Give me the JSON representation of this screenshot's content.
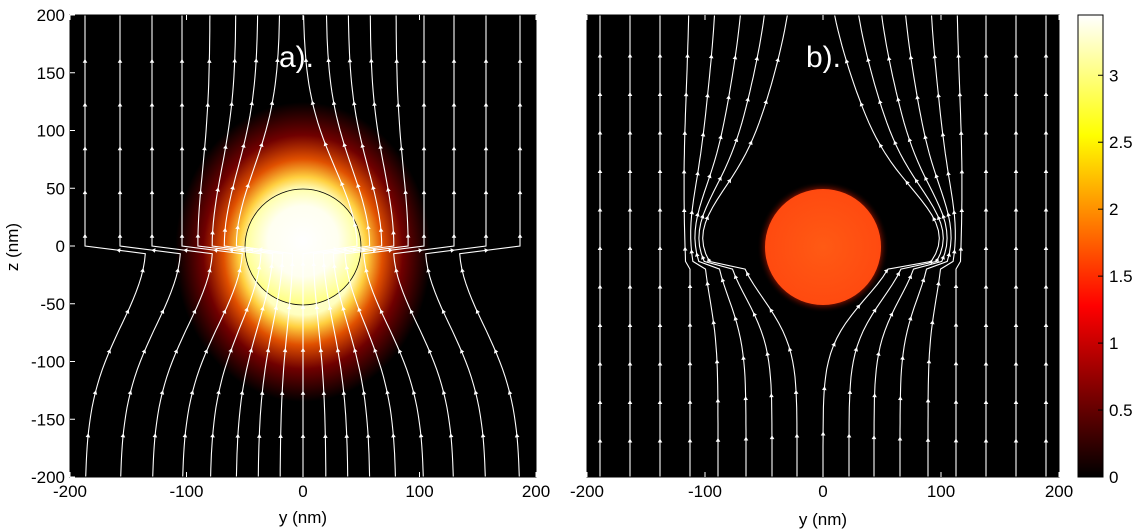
{
  "chart_data": [
    {
      "type": "heatmap",
      "panel_label": "a).",
      "xlabel": "y (nm)",
      "ylabel": "z (nm)",
      "xlim": [
        -200,
        200
      ],
      "ylim": [
        -200,
        200
      ],
      "x_ticks": [
        "-200",
        "-100",
        "0",
        "100",
        "200"
      ],
      "y_ticks": [
        "200",
        "150",
        "100",
        "50",
        "0",
        "-50",
        "-100",
        "-150",
        "-200"
      ],
      "sphere": {
        "center_y": 0,
        "center_z": 0,
        "radius": 50,
        "interior_value": 3.4
      },
      "field": "field enhancement high near sphere, decaying to 0; field lines converge beneath the sphere and diverge above",
      "streamlines": "white field lines with arrows"
    },
    {
      "type": "heatmap",
      "panel_label": "b).",
      "xlabel": "y (nm)",
      "ylabel": "",
      "xlim": [
        -200,
        200
      ],
      "ylim": [
        -200,
        200
      ],
      "x_ticks": [
        "-200",
        "-100",
        "0",
        "100",
        "200"
      ],
      "y_ticks": [],
      "sphere": {
        "center_y": 0,
        "center_z": 0,
        "radius": 50,
        "interior_value": 1.7
      },
      "field": "near zero outside sphere; field lines excluded from sphere region",
      "streamlines": "white field lines with arrows"
    }
  ],
  "colorbar": {
    "ticks": [
      "3",
      "2.5",
      "2",
      "1.5",
      "1",
      "0.5",
      "0"
    ],
    "range": [
      0,
      3.45
    ],
    "colormap": "hot"
  }
}
